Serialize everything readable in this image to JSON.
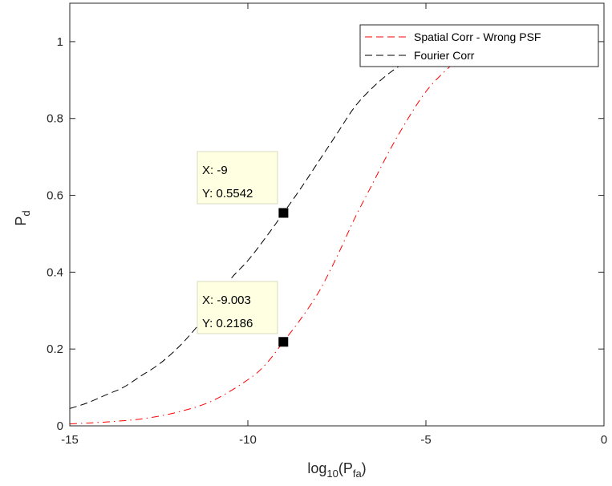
{
  "chart_data": {
    "type": "line",
    "xlabel": {
      "base": "log",
      "sub": "10",
      "open": "(P",
      "sub2": "fa",
      "close": ")"
    },
    "ylabel": {
      "base": "P",
      "sub": "d"
    },
    "xlim": [
      -15,
      0
    ],
    "ylim": [
      0,
      1.1
    ],
    "xticks": [
      -15,
      -10,
      -5,
      0
    ],
    "xtick_labels": [
      "-15",
      "-10",
      "-5",
      "0"
    ],
    "yticks": [
      0,
      0.2,
      0.4,
      0.6,
      0.8,
      1
    ],
    "ytick_labels": [
      "0",
      "0.2",
      "0.4",
      "0.6",
      "0.8",
      "1"
    ],
    "grid": false,
    "legend_position": "top-right",
    "series": [
      {
        "name": "Spatial Corr - Wrong PSF",
        "color": "#ff0000",
        "style": "dashed",
        "x": [
          -15,
          -14,
          -13,
          -12,
          -11,
          -10,
          -9.5,
          -9.003,
          -8.5,
          -8,
          -7.5,
          -7,
          -6.5,
          -6,
          -5.5,
          -5,
          -4.5,
          -4,
          -3.5,
          -3
        ],
        "y": [
          0.005,
          0.01,
          0.018,
          0.035,
          0.065,
          0.12,
          0.16,
          0.2186,
          0.28,
          0.35,
          0.44,
          0.54,
          0.63,
          0.72,
          0.8,
          0.87,
          0.92,
          0.96,
          0.99,
          1.01
        ]
      },
      {
        "name": "Fourier Corr",
        "color": "#000000",
        "style": "dashed",
        "x": [
          -15,
          -14.5,
          -14,
          -13.5,
          -13,
          -12.5,
          -12,
          -11.5,
          -11,
          -10.5,
          -10,
          -9.5,
          -9,
          -8.5,
          -8,
          -7.5,
          -7,
          -6.5,
          -6,
          -5.5,
          -5.2
        ],
        "y": [
          0.045,
          0.06,
          0.08,
          0.1,
          0.13,
          0.16,
          0.2,
          0.25,
          0.31,
          0.38,
          0.43,
          0.49,
          0.5542,
          0.62,
          0.69,
          0.76,
          0.83,
          0.88,
          0.92,
          0.95,
          0.96
        ]
      }
    ],
    "datatips": [
      {
        "x": -9,
        "y": 0.5542,
        "line1": "X: -9",
        "line2": "Y: 0.5542"
      },
      {
        "x": -9.003,
        "y": 0.2186,
        "line1": "X: -9.003",
        "line2": "Y: 0.2186"
      }
    ]
  }
}
